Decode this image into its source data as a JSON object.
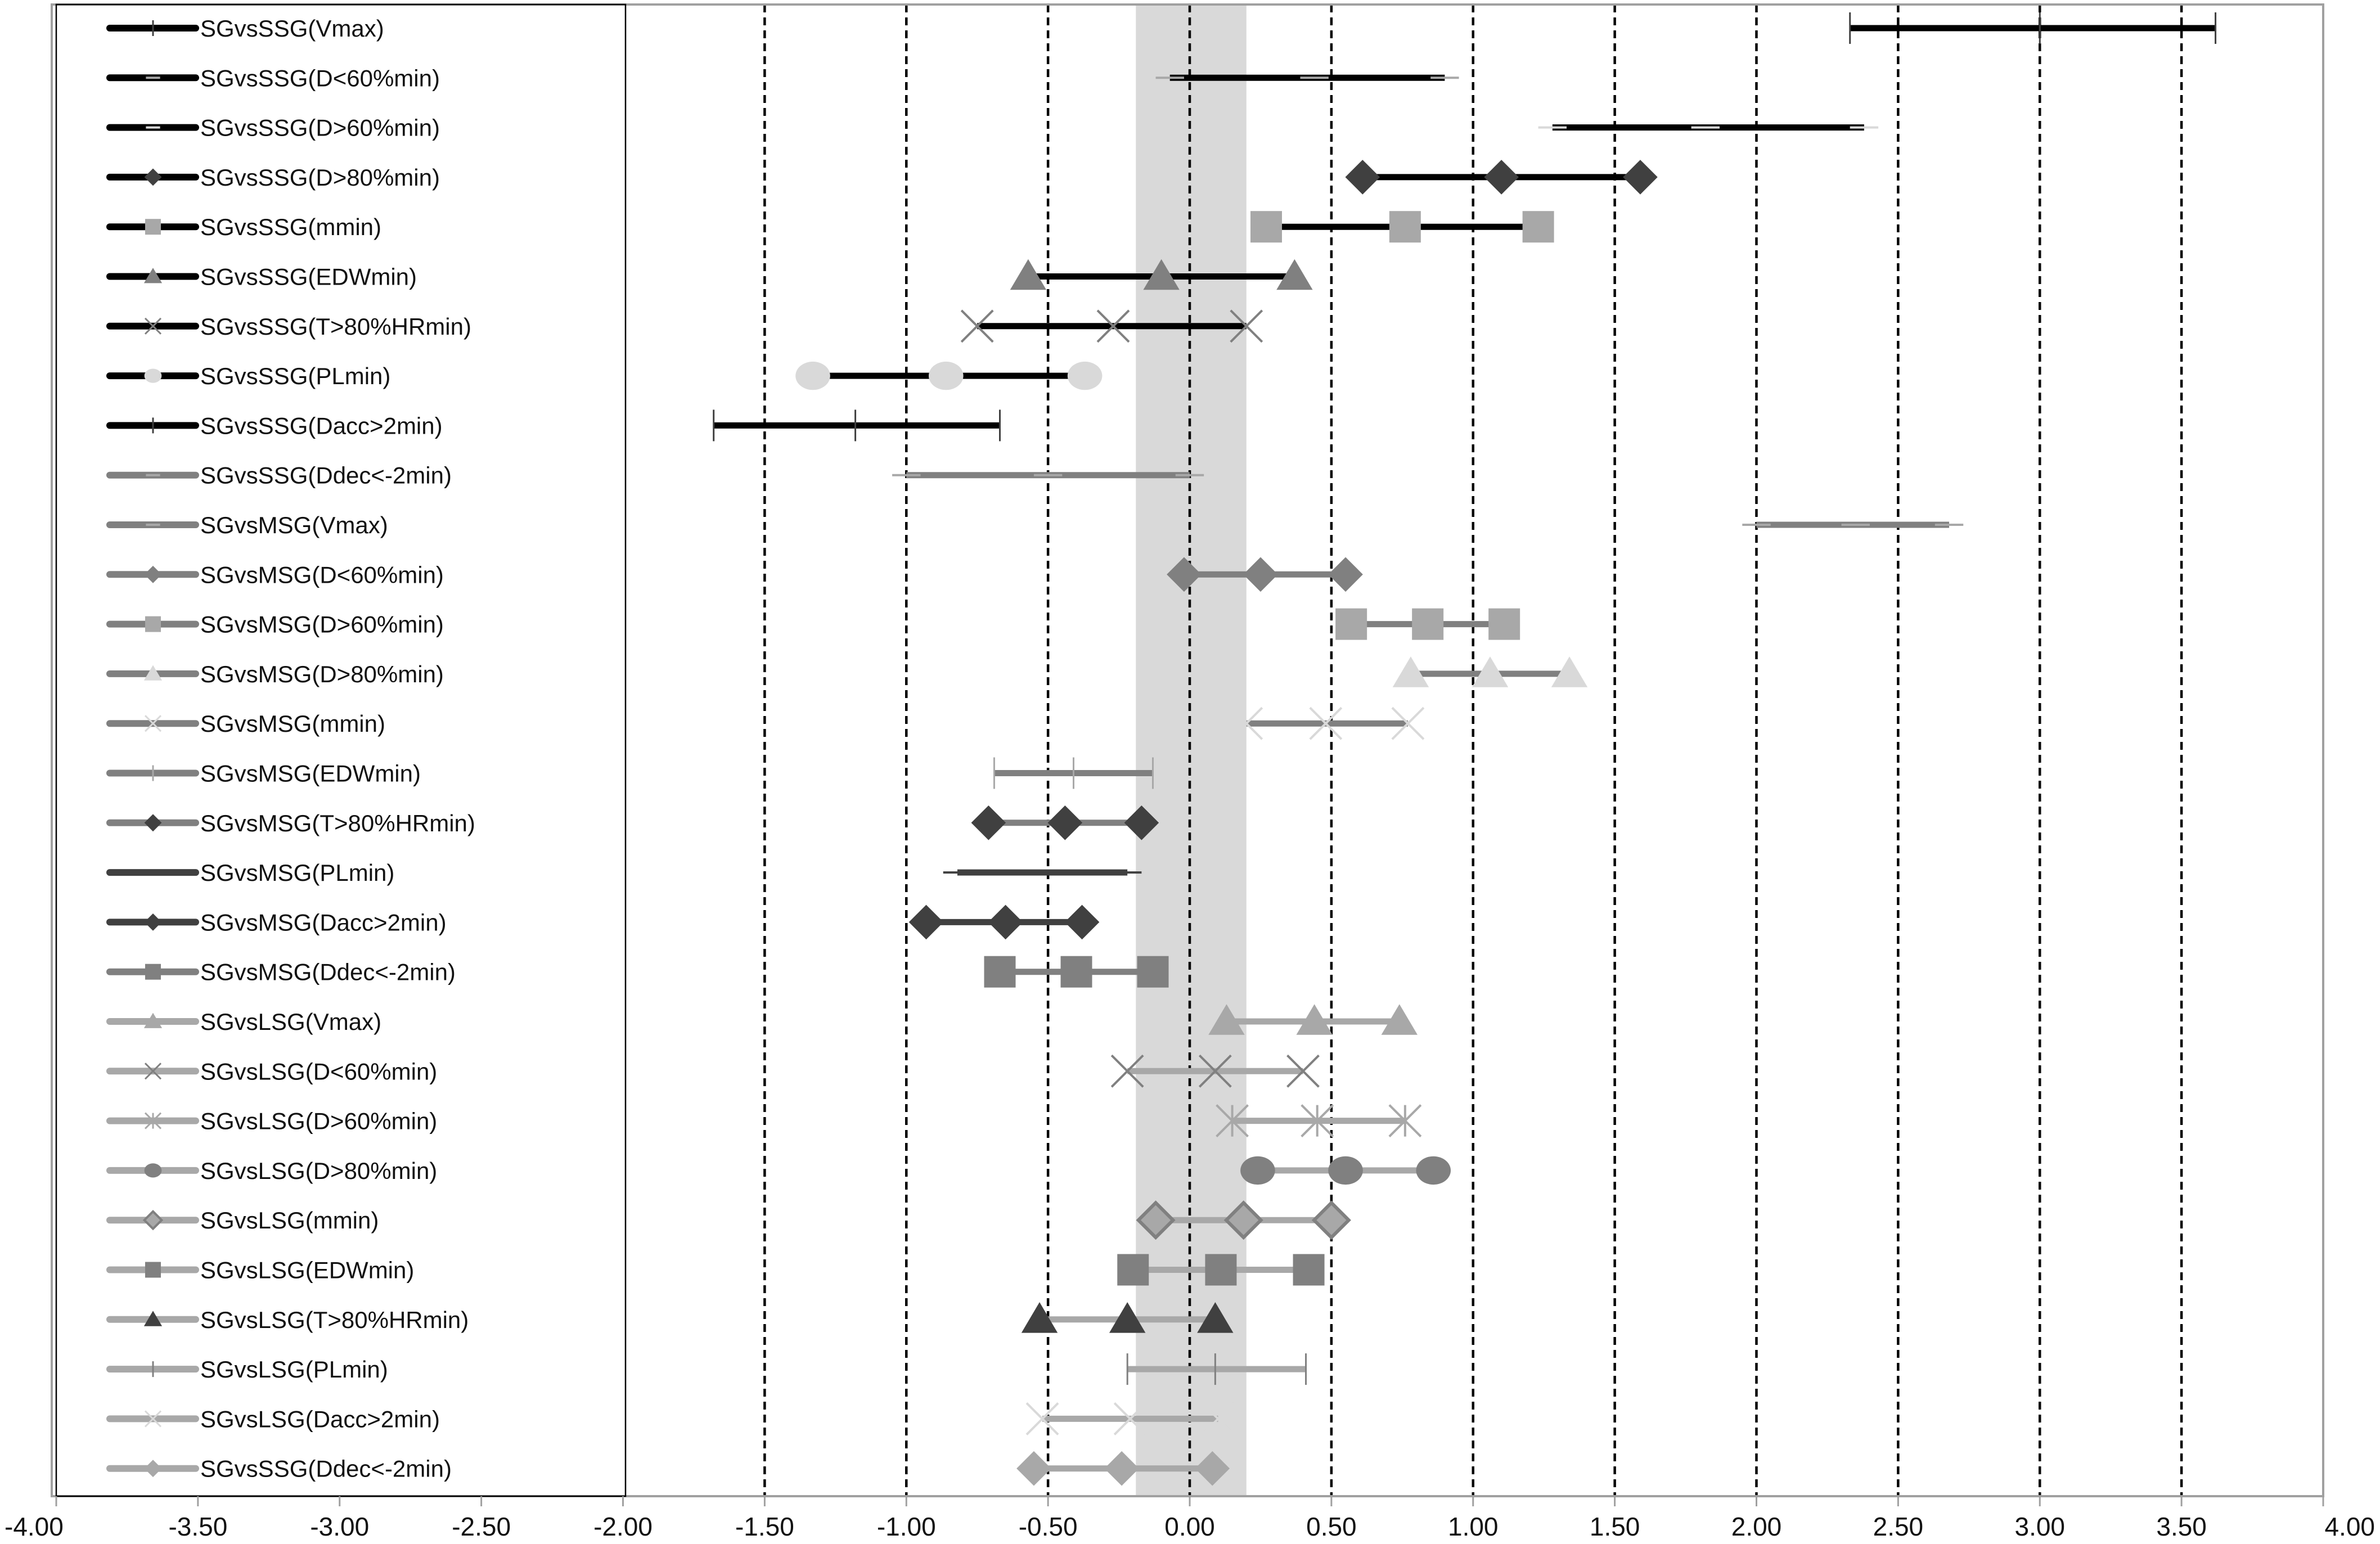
{
  "chart_data": {
    "type": "forest",
    "title": "",
    "xlabel": "",
    "ylabel": "",
    "xlim": [
      -4.0,
      4.0
    ],
    "x_ticks": [
      "-4.00",
      "-3.50",
      "-3.00",
      "-2.50",
      "-2.00",
      "-1.50",
      "-1.00",
      "-0.50",
      "0.00",
      "0.50",
      "1.00",
      "1.50",
      "2.00",
      "2.50",
      "3.00",
      "3.50",
      "4.00"
    ],
    "x_tick_values": [
      -4.0,
      -3.5,
      -3.0,
      -2.5,
      -2.0,
      -1.5,
      -1.0,
      -0.5,
      0.0,
      0.5,
      1.0,
      1.5,
      2.0,
      2.5,
      3.0,
      3.5,
      4.0
    ],
    "dashed_gridlines": [
      -1.5,
      -1.0,
      -0.5,
      0.0,
      0.5,
      1.0,
      1.5,
      2.0,
      2.5,
      3.0,
      3.5
    ],
    "shaded_band": [
      -0.19,
      0.2
    ],
    "colors": {
      "black": "#000000",
      "dark_gray": "#404040",
      "mid_gray": "#808080",
      "light_gray": "#a8a8a8",
      "pale_gray": "#d9d9d9",
      "band": "#d9d9d9",
      "axis": "#a0a0a0"
    },
    "series": [
      {
        "name": "SGvsSSG(Vmax)",
        "low": 2.33,
        "mid": 3.0,
        "high": 3.62,
        "line": "black",
        "marker": "plus",
        "marker_color": "dark_gray"
      },
      {
        "name": "SGvsSSG(D<60%min)",
        "low": -0.07,
        "mid": 0.44,
        "high": 0.9,
        "line": "black",
        "marker": "dash",
        "marker_color": "light_gray"
      },
      {
        "name": "SGvsSSG(D>60%min)",
        "low": 1.28,
        "mid": 1.82,
        "high": 2.38,
        "line": "black",
        "marker": "dash",
        "marker_color": "pale_gray"
      },
      {
        "name": "SGvsSSG(D>80%min)",
        "low": 0.61,
        "mid": 1.1,
        "high": 1.59,
        "line": "black",
        "marker": "diamond",
        "marker_color": "dark_gray"
      },
      {
        "name": "SGvsSSG(mmin)",
        "low": 0.27,
        "mid": 0.76,
        "high": 1.23,
        "line": "black",
        "marker": "square",
        "marker_color": "light_gray"
      },
      {
        "name": "SGvsSSG(EDWmin)",
        "low": -0.57,
        "mid": -0.1,
        "high": 0.37,
        "line": "black",
        "marker": "triangle",
        "marker_color": "mid_gray"
      },
      {
        "name": "SGvsSSG(T>80%HRmin)",
        "low": -0.75,
        "mid": -0.27,
        "high": 0.2,
        "line": "black",
        "marker": "x",
        "marker_color": "mid_gray"
      },
      {
        "name": "SGvsSSG(PLmin)",
        "low": -1.33,
        "mid": -0.86,
        "high": -0.37,
        "line": "black",
        "marker": "circle",
        "marker_color": "pale_gray"
      },
      {
        "name": "SGvsSSG(Dacc>2min)",
        "low": -1.68,
        "mid": -1.18,
        "high": -0.67,
        "line": "black",
        "marker": "plus",
        "marker_color": "dark_gray"
      },
      {
        "name": "SGvsSSG(Ddec<-2min)",
        "low": -1.0,
        "mid": -0.5,
        "high": 0.0,
        "line": "mid_gray",
        "marker": "dash",
        "marker_color": "light_gray"
      },
      {
        "name": "SGvsMSG(Vmax)",
        "low": 2.0,
        "mid": 2.35,
        "high": 2.68,
        "line": "mid_gray",
        "marker": "dash",
        "marker_color": "light_gray"
      },
      {
        "name": "SGvsMSG(D<60%min)",
        "low": -0.02,
        "mid": 0.25,
        "high": 0.55,
        "line": "mid_gray",
        "marker": "diamond",
        "marker_color": "mid_gray"
      },
      {
        "name": "SGvsMSG(D>60%min)",
        "low": 0.57,
        "mid": 0.84,
        "high": 1.11,
        "line": "mid_gray",
        "marker": "square",
        "marker_color": "light_gray"
      },
      {
        "name": "SGvsMSG(D>80%min)",
        "low": 0.78,
        "mid": 1.06,
        "high": 1.34,
        "line": "mid_gray",
        "marker": "triangle",
        "marker_color": "pale_gray"
      },
      {
        "name": "SGvsMSG(mmin)",
        "low": 0.2,
        "mid": 0.48,
        "high": 0.77,
        "line": "mid_gray",
        "marker": "x",
        "marker_color": "pale_gray"
      },
      {
        "name": "SGvsMSG(EDWmin)",
        "low": -0.69,
        "mid": -0.41,
        "high": -0.13,
        "line": "mid_gray",
        "marker": "plus",
        "marker_color": "light_gray"
      },
      {
        "name": "SGvsMSG(T>80%HRmin)",
        "low": -0.71,
        "mid": -0.44,
        "high": -0.17,
        "line": "mid_gray",
        "marker": "diamond",
        "marker_color": "dark_gray"
      },
      {
        "name": "SGvsMSG(PLmin)",
        "low": -0.82,
        "mid": -0.52,
        "high": -0.22,
        "line": "dark_gray",
        "marker": "dash",
        "marker_color": "dark_gray"
      },
      {
        "name": "SGvsMSG(Dacc>2min)",
        "low": -0.93,
        "mid": -0.65,
        "high": -0.38,
        "line": "dark_gray",
        "marker": "diamond",
        "marker_color": "dark_gray"
      },
      {
        "name": "SGvsMSG(Ddec<-2min)",
        "low": -0.67,
        "mid": -0.4,
        "high": -0.13,
        "line": "mid_gray",
        "marker": "square",
        "marker_color": "mid_gray"
      },
      {
        "name": "SGvsLSG(Vmax)",
        "low": 0.13,
        "mid": 0.44,
        "high": 0.74,
        "line": "light_gray",
        "marker": "triangle",
        "marker_color": "light_gray"
      },
      {
        "name": "SGvsLSG(D<60%min)",
        "low": -0.22,
        "mid": 0.09,
        "high": 0.4,
        "line": "light_gray",
        "marker": "x",
        "marker_color": "mid_gray"
      },
      {
        "name": "SGvsLSG(D>60%min)",
        "low": 0.15,
        "mid": 0.45,
        "high": 0.76,
        "line": "light_gray",
        "marker": "asterisk",
        "marker_color": "light_gray"
      },
      {
        "name": "SGvsLSG(D>80%min)",
        "low": 0.24,
        "mid": 0.55,
        "high": 0.86,
        "line": "light_gray",
        "marker": "circle",
        "marker_color": "mid_gray"
      },
      {
        "name": "SGvsLSG(mmin)",
        "low": -0.12,
        "mid": 0.19,
        "high": 0.5,
        "line": "light_gray",
        "marker": "diamond_outline",
        "marker_color": "mid_gray"
      },
      {
        "name": "SGvsLSG(EDWmin)",
        "low": -0.2,
        "mid": 0.11,
        "high": 0.42,
        "line": "light_gray",
        "marker": "square",
        "marker_color": "mid_gray"
      },
      {
        "name": "SGvsLSG(T>80%HRmin)",
        "low": -0.53,
        "mid": -0.22,
        "high": 0.09,
        "line": "light_gray",
        "marker": "triangle",
        "marker_color": "dark_gray"
      },
      {
        "name": "SGvsLSG(PLmin)",
        "low": -0.22,
        "mid": 0.09,
        "high": 0.41,
        "line": "light_gray",
        "marker": "plus",
        "marker_color": "mid_gray"
      },
      {
        "name": "SGvsLSG(Dacc>2min)",
        "low": -0.52,
        "mid": -0.21,
        "high": 0.1,
        "line": "light_gray",
        "marker": "x",
        "marker_color": "pale_gray"
      },
      {
        "name": "SGvsSSG(Ddec<-2min)",
        "low": -0.55,
        "mid": -0.24,
        "high": 0.08,
        "line": "light_gray",
        "marker": "diamond",
        "marker_color": "light_gray"
      }
    ]
  }
}
